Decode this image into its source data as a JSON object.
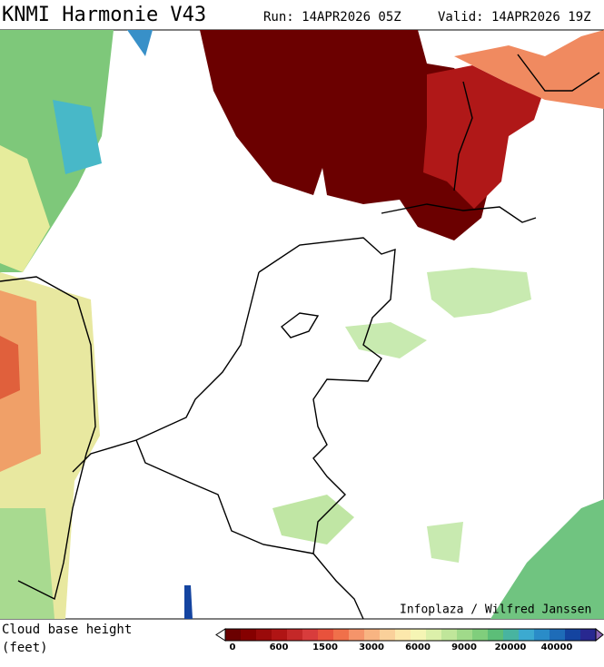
{
  "header": {
    "title": "KNMI Harmonie V43",
    "run": "Run: 14APR2026 05Z",
    "valid": "Valid: 14APR2026 19Z"
  },
  "map": {
    "credit": "Infoplaza / Wilfred Janssen"
  },
  "legend": {
    "title": "Cloud base height",
    "unit": "(feet)",
    "colors": [
      "#6b0000",
      "#850000",
      "#9a0a0a",
      "#b01414",
      "#c42828",
      "#d83c3c",
      "#e8523c",
      "#f0704a",
      "#f5946a",
      "#f8b482",
      "#fad09a",
      "#fce8ac",
      "#f5f5b4",
      "#dcf0aa",
      "#c0e69a",
      "#a0da8a",
      "#80ce7c",
      "#5cbe78",
      "#48b4a0",
      "#3caad0",
      "#2a8cc8",
      "#1e6cb8",
      "#1444a0",
      "#282890"
    ],
    "labels": [
      "0",
      "600",
      "1500",
      "3000",
      "6000",
      "9000",
      "20000",
      "40000"
    ]
  }
}
